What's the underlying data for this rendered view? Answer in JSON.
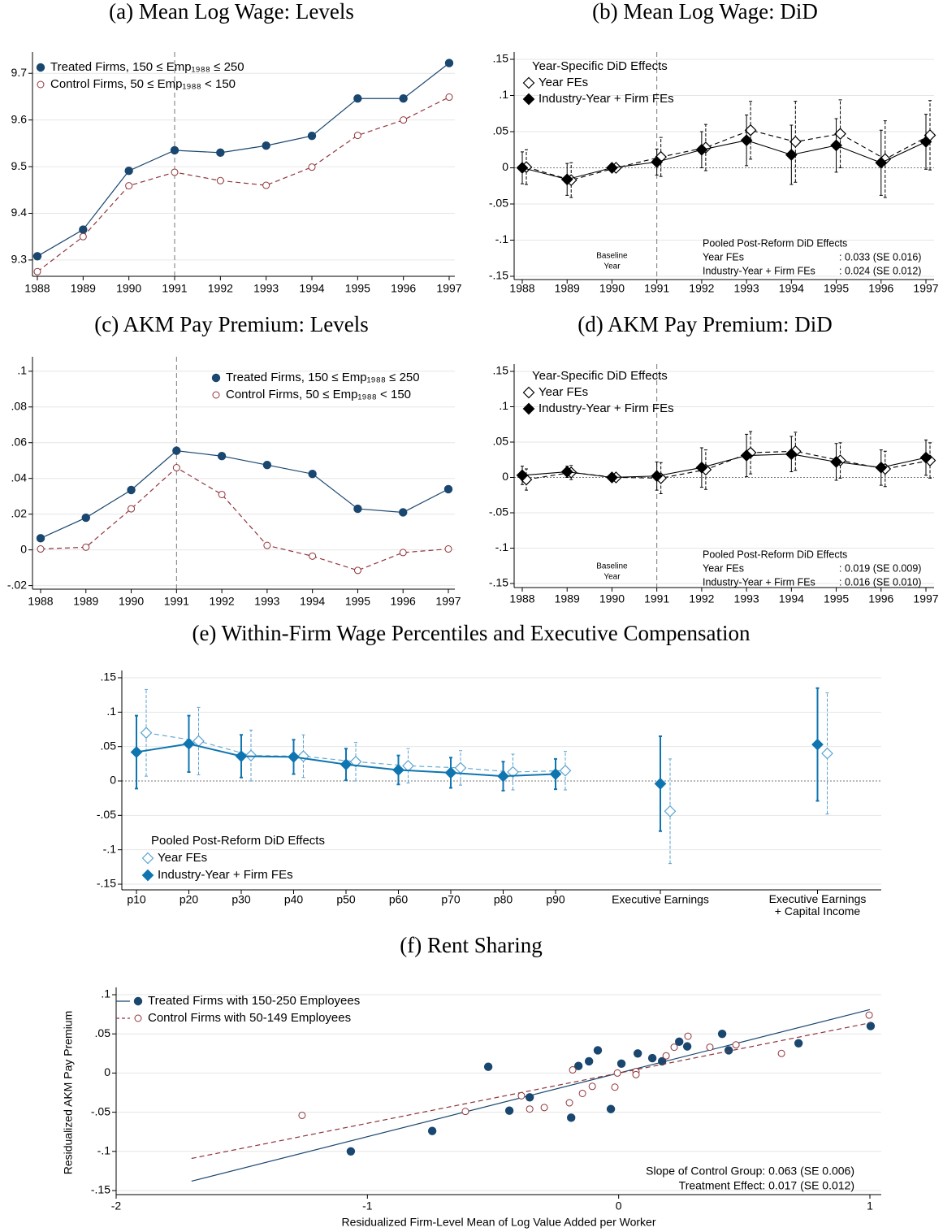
{
  "chart_data": [
    {
      "type": "line",
      "title": "(a) Mean Log Wage: Levels",
      "categories": [
        "1988",
        "1989",
        "1990",
        "1991",
        "1992",
        "1993",
        "1994",
        "1995",
        "1996",
        "1997"
      ],
      "ylim": [
        9.265,
        9.73
      ],
      "yticks": [
        9.3,
        9.4,
        9.5,
        9.6,
        9.7
      ],
      "grid": true,
      "vline": "1991",
      "legend_position": "top-left",
      "series": [
        {
          "name": "Treated Firms, 150 ≤ Emp₁₉₈₈ ≤ 250",
          "color": "#1a476f",
          "marker": "filled-circle",
          "line": "solid",
          "values": [
            9.308,
            9.365,
            9.491,
            9.535,
            9.53,
            9.545,
            9.566,
            9.646,
            9.646,
            9.722
          ]
        },
        {
          "name": "Control Firms,  50 ≤ Emp₁₉₈₈ < 150",
          "color": "#90353b",
          "marker": "hollow-circle",
          "line": "dashed",
          "values": [
            9.275,
            9.35,
            9.459,
            9.488,
            9.47,
            9.46,
            9.499,
            9.567,
            9.6,
            9.649
          ]
        }
      ]
    },
    {
      "type": "errorbar",
      "title": "(b) Mean Log Wage: DiD",
      "categories": [
        "1988",
        "1989",
        "1990",
        "1991",
        "1992",
        "1993",
        "1994",
        "1995",
        "1996",
        "1997"
      ],
      "ylim": [
        -0.15,
        0.15
      ],
      "yticks": [
        {
          "value": 0.15,
          "label": ".15"
        },
        {
          "value": 0.1,
          "label": ".1"
        },
        {
          "value": 0.05,
          "label": ".05"
        },
        0,
        {
          "value": -0.05,
          "label": "-.05"
        },
        {
          "value": -0.1,
          "label": "-.1"
        },
        {
          "value": -0.15,
          "label": "-.15"
        }
      ],
      "grid": true,
      "zeroline": true,
      "vline": "1991",
      "legend_position": "top-left",
      "legend_title": "Year-Specific DiD Effects",
      "baseline_label": [
        "Baseline",
        "Year"
      ],
      "pooled": {
        "title": "Pooled Post-Reform DiD Effects",
        "rows": [
          [
            "Year FEs",
            ": 0.033 (SE 0.016)"
          ],
          [
            "Industry-Year + Firm FEs",
            ": 0.024 (SE 0.012)"
          ]
        ]
      },
      "series": [
        {
          "name": "Year FEs",
          "color": "#000000",
          "marker": "hollow-diamond",
          "line": "dashed",
          "values": [
            0.001,
            -0.017,
            0,
            0.015,
            0.028,
            0.052,
            0.036,
            0.047,
            0.012,
            0.045
          ],
          "errors": [
            0.024,
            0.024,
            0,
            0.027,
            0.032,
            0.04,
            0.056,
            0.047,
            0.053,
            0.048
          ]
        },
        {
          "name": "Industry-Year + Firm FEs",
          "color": "#000000",
          "marker": "filled-diamond",
          "line": "solid",
          "values": [
            0.0,
            -0.016,
            0,
            0.008,
            0.025,
            0.038,
            0.018,
            0.031,
            0.007,
            0.036
          ],
          "errors": [
            0.022,
            0.022,
            0,
            0.018,
            0.025,
            0.035,
            0.041,
            0.037,
            0.045,
            0.038
          ]
        }
      ]
    },
    {
      "type": "line",
      "title": "(c) AKM Pay Premium: Levels",
      "categories": [
        "1988",
        "1989",
        "1990",
        "1991",
        "1992",
        "1993",
        "1994",
        "1995",
        "1996",
        "1997"
      ],
      "ylim": [
        -0.022,
        0.104
      ],
      "yticks": [
        {
          "value": 0.1,
          "label": ".1"
        },
        {
          "value": 0.08,
          "label": ".08"
        },
        {
          "value": 0.06,
          "label": ".06"
        },
        {
          "value": 0.04,
          "label": ".04"
        },
        {
          "value": 0.02,
          "label": ".02"
        },
        0,
        {
          "value": -0.02,
          "label": "-.02"
        }
      ],
      "grid": true,
      "vline": "1991",
      "legend_position": "top-right",
      "series": [
        {
          "name": "Treated Firms, 150 ≤ Emp₁₉₈₈ ≤ 250",
          "color": "#1a476f",
          "marker": "filled-circle",
          "line": "solid",
          "values": [
            0.0065,
            0.018,
            0.0335,
            0.0555,
            0.0525,
            0.0475,
            0.0425,
            0.023,
            0.021,
            0.034
          ]
        },
        {
          "name": "Control Firms,  50 ≤ Emp₁₉₈₈ < 150",
          "color": "#90353b",
          "marker": "hollow-circle",
          "line": "dashed",
          "values": [
            0.0005,
            0.0015,
            0.023,
            0.046,
            0.031,
            0.0025,
            -0.0035,
            -0.0115,
            -0.0015,
            0.0005
          ]
        }
      ]
    },
    {
      "type": "errorbar",
      "title": "(d) AKM Pay Premium: DiD",
      "categories": [
        "1988",
        "1989",
        "1990",
        "1991",
        "1992",
        "1993",
        "1994",
        "1995",
        "1996",
        "1997"
      ],
      "ylim": [
        -0.15,
        0.15
      ],
      "yticks": [
        {
          "value": 0.15,
          "label": ".15"
        },
        {
          "value": 0.1,
          "label": ".1"
        },
        {
          "value": 0.05,
          "label": ".05"
        },
        0,
        {
          "value": -0.05,
          "label": "-.05"
        },
        {
          "value": -0.1,
          "label": "-.1"
        },
        {
          "value": -0.15,
          "label": "-.15"
        }
      ],
      "grid": true,
      "zeroline": true,
      "vline": "1991",
      "legend_position": "top-left",
      "legend_title": "Year-Specific DiD Effects",
      "baseline_label": [
        "Baseline",
        "Year"
      ],
      "pooled": {
        "title": "Pooled Post-Reform DiD Effects",
        "rows": [
          [
            "Year FEs",
            ": 0.019 (SE 0.009)"
          ],
          [
            "Industry-Year + Firm FEs",
            ": 0.016 (SE 0.010)"
          ]
        ]
      },
      "series": [
        {
          "name": "Year FEs",
          "color": "#000000",
          "marker": "hollow-diamond",
          "line": "dashed",
          "values": [
            -0.003,
            0.007,
            0,
            -0.001,
            0.011,
            0.035,
            0.037,
            0.024,
            0.012,
            0.024
          ],
          "errors": [
            0.015,
            0.01,
            0,
            0.022,
            0.028,
            0.03,
            0.027,
            0.025,
            0.025,
            0.025
          ]
        },
        {
          "name": "Industry-Year + Firm FEs",
          "color": "#000000",
          "marker": "filled-diamond",
          "line": "solid",
          "values": [
            0.003,
            0.008,
            0,
            0.002,
            0.014,
            0.031,
            0.033,
            0.022,
            0.014,
            0.028
          ],
          "errors": [
            0.013,
            0.008,
            0,
            0.02,
            0.028,
            0.03,
            0.025,
            0.026,
            0.025,
            0.025
          ]
        }
      ]
    },
    {
      "type": "errorbar",
      "title": "(e) Within-Firm Wage Percentiles and Executive Compensation",
      "categories": [
        "p10",
        "p20",
        "p30",
        "p40",
        "p50",
        "p60",
        "p70",
        "p80",
        "p90",
        "Executive Earnings",
        "Executive Earnings\n+ Capital Income"
      ],
      "ylim": [
        -0.15,
        0.15
      ],
      "yticks": [
        {
          "value": 0.15,
          "label": ".15"
        },
        {
          "value": 0.1,
          "label": ".1"
        },
        {
          "value": 0.05,
          "label": ".05"
        },
        0,
        {
          "value": -0.05,
          "label": "-.05"
        },
        {
          "value": -0.1,
          "label": "-.1"
        },
        {
          "value": -0.15,
          "label": "-.15"
        }
      ],
      "grid": true,
      "zeroline": true,
      "connected_count": 9,
      "legend_position": "bottom-left",
      "legend_title": "Pooled Post-Reform DiD Effects",
      "series": [
        {
          "name": "Year FEs",
          "color": "#5ba3d0",
          "marker": "hollow-diamond",
          "line": "dashed",
          "values": [
            0.07,
            0.058,
            0.037,
            0.036,
            0.028,
            0.022,
            0.019,
            0.013,
            0.015,
            -0.044,
            0.04
          ],
          "errors": [
            0.063,
            0.049,
            0.037,
            0.031,
            0.028,
            0.025,
            0.025,
            0.026,
            0.028,
            0.076,
            0.088
          ]
        },
        {
          "name": "Industry-Year + Firm FEs",
          "color": "#0f75b0",
          "marker": "filled-diamond",
          "line": "solid",
          "values": [
            0.042,
            0.054,
            0.036,
            0.035,
            0.024,
            0.016,
            0.012,
            0.007,
            0.01,
            -0.004,
            0.053
          ],
          "errors": [
            0.053,
            0.041,
            0.031,
            0.025,
            0.023,
            0.021,
            0.022,
            0.021,
            0.022,
            0.069,
            0.082
          ]
        }
      ]
    },
    {
      "type": "scatter",
      "title": "(f) Rent Sharing",
      "xlabel": "Residualized Firm-Level Mean of Log Value Added per Worker",
      "ylabel": "Residualized AKM Pay Premium",
      "xlim": [
        -2,
        1
      ],
      "xticks": [
        -2,
        -1,
        0,
        1
      ],
      "ylim": [
        -0.15,
        0.1
      ],
      "yticks": [
        {
          "value": 0.1,
          "label": ".1"
        },
        {
          "value": 0.05,
          "label": ".05"
        },
        0,
        {
          "value": -0.05,
          "label": "-.05"
        },
        {
          "value": -0.1,
          "label": "-.1"
        },
        {
          "value": -0.15,
          "label": "-.15"
        }
      ],
      "grid": true,
      "legend_position": "top-left",
      "annotations": [
        "Slope of Control Group: 0.063 (SE 0.006)",
        "Treatment Effect: 0.017 (SE 0.012)"
      ],
      "series": [
        {
          "name": "Treated Firms with 150-250 Employees",
          "color": "#1a476f",
          "marker": "filled-circle",
          "line": "solid",
          "x": [
            -1.066,
            -0.742,
            -0.519,
            -0.435,
            -0.354,
            -0.189,
            -0.16,
            -0.118,
            -0.083,
            -0.031,
            0.011,
            0.076,
            0.134,
            0.173,
            0.241,
            0.273,
            0.412,
            0.438,
            0.716,
            1.003
          ],
          "values": [
            -0.1,
            -0.074,
            0.008,
            -0.048,
            -0.031,
            -0.057,
            0.009,
            0.015,
            0.029,
            -0.046,
            0.012,
            0.025,
            0.019,
            0.015,
            0.04,
            0.034,
            0.05,
            0.029,
            0.038,
            0.06
          ],
          "fit": {
            "x": [
              -1.7,
              1
            ],
            "values": [
              -0.138,
              0.081
            ]
          }
        },
        {
          "name": "Control Firms with 50-149 Employees",
          "color": "#90353b",
          "marker": "hollow-circle",
          "line": "dashed",
          "x": [
            -1.26,
            -0.61,
            -0.387,
            -0.354,
            -0.296,
            -0.196,
            -0.183,
            -0.144,
            -0.105,
            -0.015,
            -0.005,
            0.069,
            0.069,
            0.189,
            0.221,
            0.276,
            0.363,
            0.467,
            0.648,
            0.997
          ],
          "values": [
            -0.054,
            -0.049,
            -0.029,
            -0.046,
            -0.044,
            -0.038,
            0.004,
            -0.026,
            -0.017,
            -0.018,
            0.0,
            0.002,
            -0.002,
            0.022,
            0.033,
            0.047,
            0.033,
            0.036,
            0.025,
            0.074
          ],
          "fit": {
            "x": [
              -1.7,
              1
            ],
            "values": [
              -0.109,
              0.064
            ]
          }
        }
      ]
    }
  ]
}
